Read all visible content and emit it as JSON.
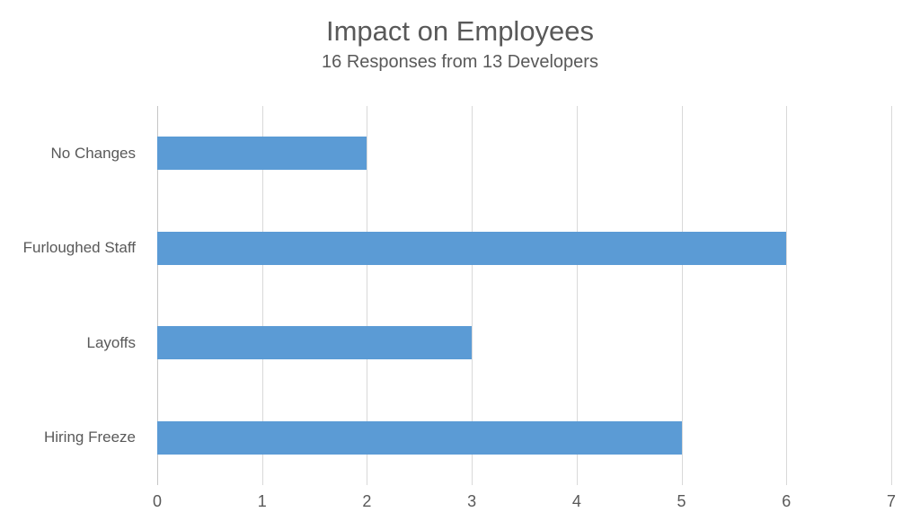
{
  "header": {
    "title": "Impact on Employees",
    "subtitle": "16 Responses from 13 Developers"
  },
  "chart_data": {
    "type": "bar",
    "orientation": "horizontal",
    "title": "Impact on Employees",
    "subtitle": "16 Responses from 13 Developers",
    "categories": [
      "No Changes",
      "Furloughed Staff",
      "Layoffs",
      "Hiring Freeze"
    ],
    "values": [
      2,
      6,
      3,
      5
    ],
    "xlabel": "",
    "ylabel": "",
    "xlim": [
      0,
      7
    ],
    "xticks": [
      0,
      1,
      2,
      3,
      4,
      5,
      6,
      7
    ],
    "grid": true,
    "legend": false,
    "colors": {
      "bar": "#5B9BD5",
      "gridline": "#D9D9D9",
      "axis_line": "#C6C6C6",
      "text": "#595959",
      "background": "#FFFFFF"
    }
  }
}
